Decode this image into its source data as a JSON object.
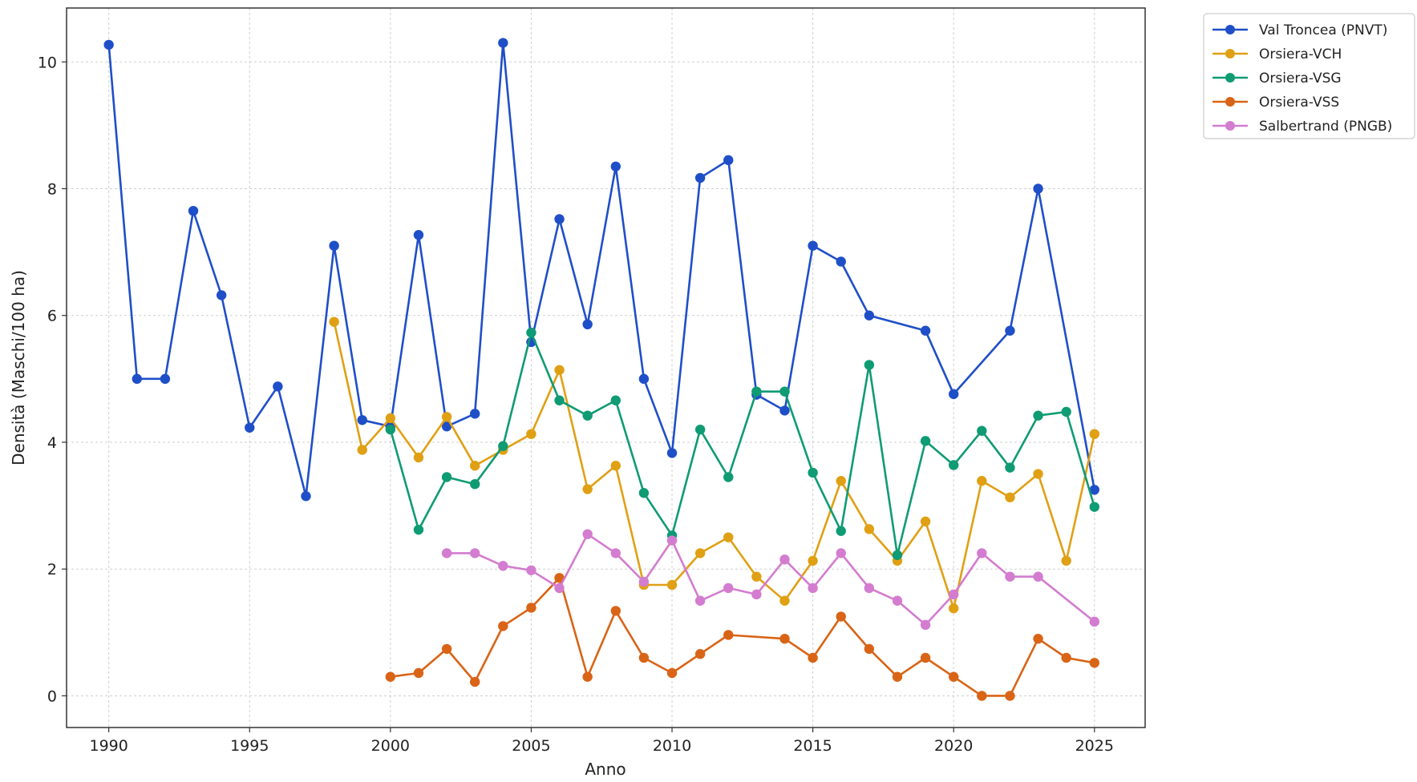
{
  "chart_data": {
    "type": "line",
    "title": "",
    "xlabel": "Anno",
    "ylabel": "Densità (Maschi/100 ha)",
    "xlim": [
      1988.5,
      2026.8
    ],
    "ylim": [
      -0.5,
      10.85
    ],
    "xticks": [
      1990,
      1995,
      2000,
      2005,
      2010,
      2015,
      2020,
      2025
    ],
    "yticks": [
      0,
      2,
      4,
      6,
      8,
      10
    ],
    "grid": true,
    "legend_position": "outside-top-right",
    "series": [
      {
        "name": "Val Troncea (PNVT)",
        "color": "#1f4fc8",
        "x": [
          1990,
          1991,
          1992,
          1993,
          1994,
          1995,
          1996,
          1997,
          1998,
          1999,
          2000,
          2001,
          2002,
          2003,
          2004,
          2005,
          2006,
          2007,
          2008,
          2009,
          2010,
          2011,
          2012,
          2013,
          2014,
          2015,
          2016,
          2017,
          2019,
          2020,
          2022,
          2023,
          2025
        ],
        "y": [
          10.27,
          5.0,
          5.0,
          7.65,
          6.32,
          4.23,
          4.88,
          3.15,
          7.1,
          4.35,
          4.25,
          7.27,
          4.25,
          4.45,
          10.3,
          5.58,
          7.52,
          5.86,
          8.35,
          5.0,
          3.83,
          8.17,
          8.45,
          4.75,
          4.5,
          7.1,
          6.85,
          6.0,
          5.76,
          4.76,
          5.76,
          8.0,
          3.25
        ]
      },
      {
        "name": "Orsiera-VCH",
        "color": "#e0a014",
        "x": [
          1998,
          1999,
          2000,
          2001,
          2002,
          2003,
          2004,
          2005,
          2006,
          2007,
          2008,
          2009,
          2010,
          2011,
          2012,
          2013,
          2014,
          2015,
          2016,
          2017,
          2018,
          2019,
          2020,
          2021,
          2022,
          2023,
          2024,
          2025
        ],
        "y": [
          5.9,
          3.88,
          4.38,
          3.76,
          4.4,
          3.63,
          3.88,
          4.13,
          5.14,
          3.26,
          3.63,
          1.75,
          1.75,
          2.25,
          2.5,
          1.88,
          1.5,
          2.13,
          3.39,
          2.63,
          2.13,
          2.75,
          1.38,
          3.39,
          3.13,
          3.5,
          2.13,
          4.13
        ]
      },
      {
        "name": "Orsiera-VSG",
        "color": "#0f9b73",
        "x": [
          2000,
          2001,
          2002,
          2003,
          2004,
          2005,
          2006,
          2007,
          2008,
          2009,
          2010,
          2011,
          2012,
          2013,
          2014,
          2015,
          2016,
          2017,
          2018,
          2019,
          2020,
          2021,
          2022,
          2023,
          2024,
          2025
        ],
        "y": [
          4.2,
          2.62,
          3.45,
          3.34,
          3.94,
          5.73,
          4.66,
          4.42,
          4.66,
          3.2,
          2.53,
          4.2,
          3.45,
          4.8,
          4.8,
          3.52,
          2.6,
          5.22,
          2.22,
          4.02,
          3.64,
          4.18,
          3.6,
          4.42,
          4.48,
          2.98
        ]
      },
      {
        "name": "Orsiera-VSS",
        "color": "#d96416",
        "x": [
          2000,
          2001,
          2002,
          2003,
          2004,
          2005,
          2006,
          2007,
          2008,
          2009,
          2010,
          2011,
          2012,
          2014,
          2015,
          2016,
          2017,
          2018,
          2019,
          2020,
          2021,
          2022,
          2023,
          2024,
          2025
        ],
        "y": [
          0.3,
          0.36,
          0.74,
          0.22,
          1.1,
          1.39,
          1.86,
          0.3,
          1.34,
          0.6,
          0.36,
          0.66,
          0.96,
          0.9,
          0.6,
          1.25,
          0.74,
          0.3,
          0.6,
          0.3,
          0.0,
          0.0,
          0.9,
          0.6,
          0.52
        ]
      },
      {
        "name": "Salbertrand (PNGB)",
        "color": "#d37cd0",
        "x": [
          2002,
          2003,
          2004,
          2005,
          2006,
          2007,
          2008,
          2009,
          2010,
          2011,
          2012,
          2013,
          2014,
          2015,
          2016,
          2017,
          2018,
          2019,
          2020,
          2021,
          2022,
          2023,
          2025
        ],
        "y": [
          2.25,
          2.25,
          2.05,
          1.98,
          1.7,
          2.55,
          2.25,
          1.8,
          2.45,
          1.5,
          1.7,
          1.6,
          2.15,
          1.7,
          2.25,
          1.7,
          1.5,
          1.12,
          1.6,
          2.25,
          1.88,
          1.88,
          1.17
        ]
      }
    ]
  }
}
